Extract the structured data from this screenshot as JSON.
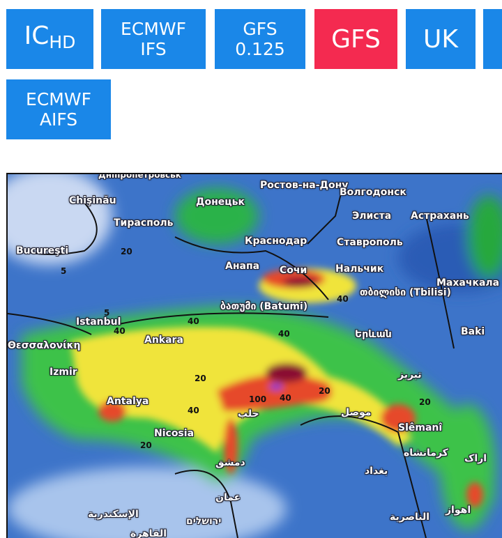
{
  "model_buttons": [
    {
      "label": "IC",
      "sub": "HD",
      "active": false
    },
    {
      "label": "ECMWF",
      "line2": "IFS",
      "active": false
    },
    {
      "label": "GFS",
      "line2": "0.125",
      "active": false
    },
    {
      "label": "GFS",
      "active": true
    },
    {
      "label": "UK",
      "active": false
    },
    {
      "label": "ECMWF",
      "line2": "AIFS",
      "active": false
    }
  ],
  "colors": {
    "button": "#1a87e8",
    "button_active": "#f42a50"
  },
  "map": {
    "cities": [
      "Дніпропетровськ",
      "Ростов-на-Дону",
      "Chişinău",
      "Донецьк",
      "Волгодонск",
      "Тирасполь",
      "Элиста",
      "Астрахань",
      "Bucureşti",
      "Краснодар",
      "Ставрополь",
      "Анапа",
      "Сочи",
      "Нальчик",
      "Махачкала",
      "ბათუმი (Batumi)",
      "თბილისი (Tbilisi)",
      "Istanbul",
      "Երևան",
      "Baki",
      "Ankara",
      "Θεσσαλονίκη",
      "Izmir",
      "تبریز",
      "Antalya",
      "حلب",
      "موصل",
      "Slêmanî",
      "Nicosia",
      "کرمانشاه",
      "اراک",
      "دمشق",
      "بغداد",
      "عمان",
      "الإسكندرية",
      "ירושלים",
      "الناصرية",
      "اهواز",
      "القاهرة"
    ],
    "contour_labels": [
      "20",
      "40",
      "40",
      "40",
      "5",
      "20",
      "40",
      "100",
      "40",
      "20",
      "20",
      "40",
      "5",
      "20"
    ]
  }
}
